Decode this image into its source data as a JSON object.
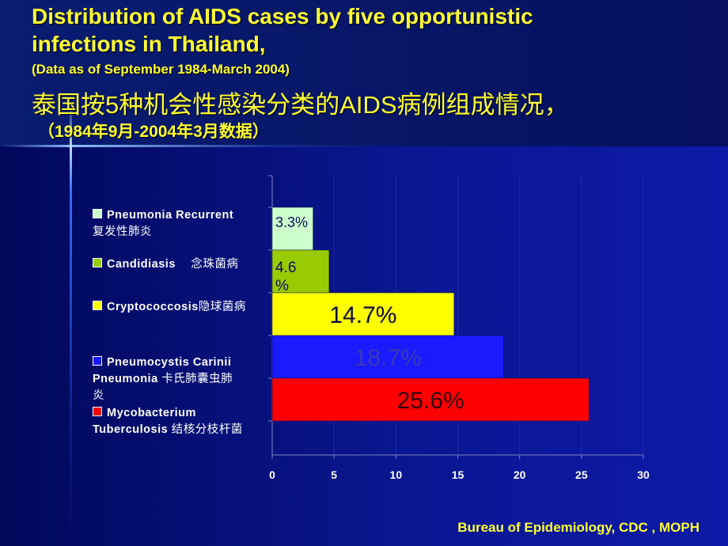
{
  "title": {
    "line1": "Distribution of AIDS cases by five opportunistic",
    "line2": "infections in Thailand,",
    "line3": "(Data as of September 1984-March 2004)",
    "line4": "泰国按5种机会性感染分类的AIDS病例组成情况，",
    "line5": "（1984年9月-2004年3月数据）"
  },
  "footer": "Bureau of Epidemiology, CDC , MOPH",
  "chart_data": {
    "type": "bar",
    "orientation": "horizontal",
    "categories": [
      "Pneumonia Recurrent 复发性肺炎",
      "Candidiasis　念珠菌病",
      "Cryptococcosis隐球菌病",
      "Pneumocystis Carinii Pneumonia 卡氏肺囊虫肺炎",
      "Mycobacterium Tuberculosis 结核分枝杆菌"
    ],
    "values": [
      3.3,
      4.6,
      14.7,
      18.7,
      25.6
    ],
    "data_labels": [
      "3.3%",
      "4.6%",
      "14.7%",
      "18.7%",
      "25.6%"
    ],
    "colors": [
      "#ccffcc",
      "#99cc00",
      "#ffff00",
      "#1a1aff",
      "#ff0000"
    ],
    "label_colors": [
      "#0a0a60",
      "#0a0a60",
      "#0a0a40",
      "#3a3ab0",
      "#300010"
    ],
    "xlim": [
      0,
      30
    ],
    "xticks": [
      "0",
      "5",
      "10",
      "15",
      "20",
      "25",
      "30"
    ],
    "grid": true,
    "legend_position": "left",
    "title": "",
    "xlabel": "",
    "ylabel": ""
  }
}
